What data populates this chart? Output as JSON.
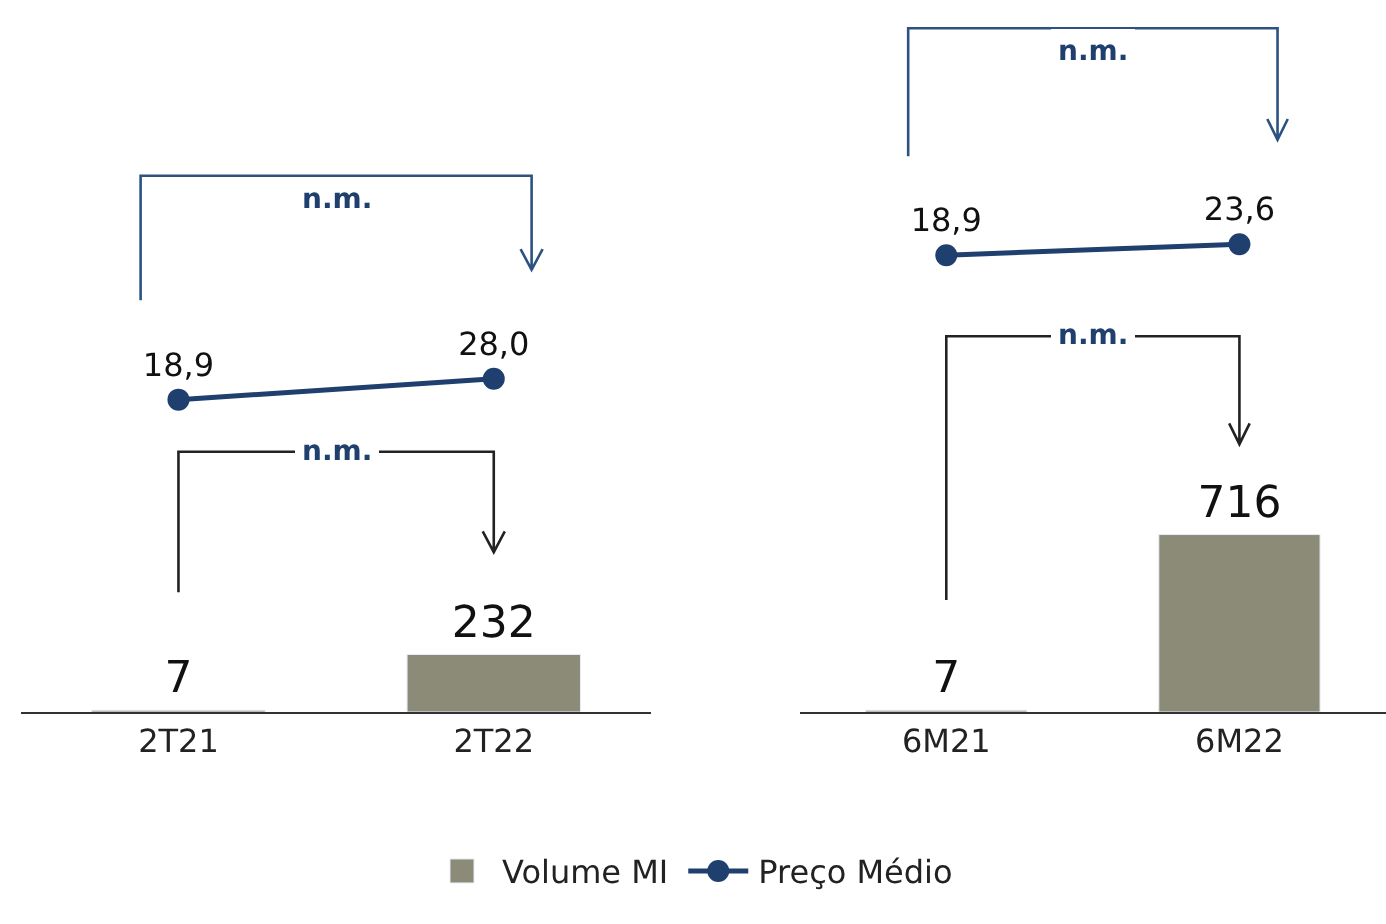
{
  "chart_data": [
    {
      "type": "line",
      "categories": [
        null,
        null
      ],
      "tick_labels": false,
      "marker": "circle",
      "legend": "bottom",
      "series": [
        {
          "name": "Preço Médio",
          "color": "#1f3f6e",
          "values": [
            18.9,
            28.0
          ],
          "value_labels": [
            "18,9",
            "28,0"
          ]
        }
      ],
      "annotations": [
        "n.m."
      ]
    },
    {
      "type": "bar",
      "categories": [
        "2T21",
        "2T22"
      ],
      "tick_labels": "x",
      "legend": "bottom",
      "series": [
        {
          "name": "Volume MI",
          "color": "#8c8b78",
          "values": [
            7,
            232
          ],
          "value_labels": [
            "7",
            "232"
          ]
        }
      ],
      "annotations": [
        "n.m."
      ]
    },
    {
      "type": "line",
      "categories": [
        null,
        null
      ],
      "tick_labels": false,
      "marker": "circle",
      "series": [
        {
          "color": "#1f3f6e",
          "values": [
            18.9,
            23.6
          ],
          "value_labels": [
            "18,9",
            "23,6"
          ]
        }
      ],
      "annotations": [
        "n.m."
      ]
    },
    {
      "type": "bar",
      "categories": [
        "6M21",
        "6M22"
      ],
      "tick_labels": "x",
      "series": [
        {
          "color": "#8c8b78",
          "values": [
            7,
            716
          ],
          "value_labels": [
            "7",
            "716"
          ]
        }
      ],
      "annotations": [
        "n.m."
      ]
    }
  ]
}
